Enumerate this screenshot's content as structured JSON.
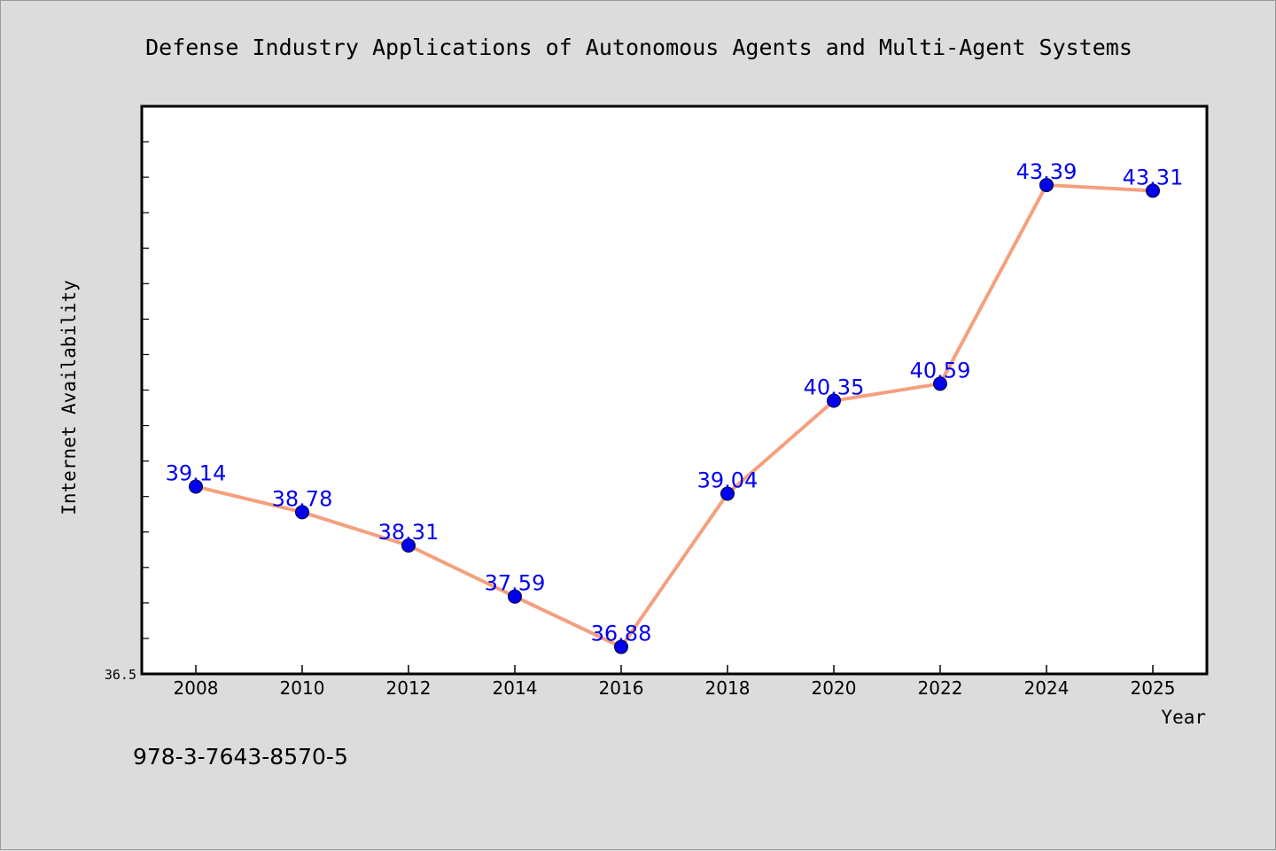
{
  "colors": {
    "background": "#dcdcdc",
    "plot_background": "#ffffff",
    "line": "#f4a07f",
    "marker": "#0000ee",
    "data_label": "#0000ee"
  },
  "footer": {
    "isbn": "978-3-7643-8570-5"
  },
  "chart_data": {
    "type": "line",
    "title": "Defense Industry Applications of Autonomous Agents and Multi-Agent Systems",
    "xlabel": "Year",
    "ylabel": "Internet Availability",
    "ylim": [
      36.5,
      44.5
    ],
    "y_tick_labels": [
      "36.5"
    ],
    "y_minor_step": 0.5,
    "grid": false,
    "legend": "none",
    "x": [
      "2008",
      "2010",
      "2012",
      "2014",
      "2016",
      "2018",
      "2020",
      "2022",
      "2024",
      "2025"
    ],
    "series": [
      {
        "values": [
          39.14,
          38.78,
          38.31,
          37.59,
          36.88,
          39.04,
          40.35,
          40.59,
          43.39,
          43.31
        ],
        "data_labels": [
          "39.14",
          "38.78",
          "38.31",
          "37.59",
          "36.88",
          "39.04",
          "40.35",
          "40.59",
          "43.39",
          "43.31"
        ]
      }
    ]
  }
}
